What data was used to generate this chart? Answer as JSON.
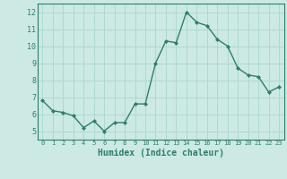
{
  "x": [
    0,
    1,
    2,
    3,
    4,
    5,
    6,
    7,
    8,
    9,
    10,
    11,
    12,
    13,
    14,
    15,
    16,
    17,
    18,
    19,
    20,
    21,
    22,
    23
  ],
  "y": [
    6.8,
    6.2,
    6.1,
    5.9,
    5.2,
    5.6,
    5.0,
    5.5,
    5.5,
    6.6,
    6.6,
    9.0,
    10.3,
    10.2,
    12.0,
    11.4,
    11.2,
    10.4,
    10.0,
    8.7,
    8.3,
    8.2,
    7.3,
    7.6
  ],
  "xlabel": "Humidex (Indice chaleur)",
  "ylim": [
    4.5,
    12.5
  ],
  "xlim": [
    -0.5,
    23.5
  ],
  "yticks": [
    5,
    6,
    7,
    8,
    9,
    10,
    11,
    12
  ],
  "xticks": [
    0,
    1,
    2,
    3,
    4,
    5,
    6,
    7,
    8,
    9,
    10,
    11,
    12,
    13,
    14,
    15,
    16,
    17,
    18,
    19,
    20,
    21,
    22,
    23
  ],
  "line_color": "#2e7d6e",
  "marker": "D",
  "marker_size": 2.0,
  "line_width": 1.0,
  "bg_color": "#cce9e4",
  "grid_color": "#b0d8d2",
  "tick_color": "#2e7d6e",
  "label_color": "#2e7d6e",
  "font_family": "monospace",
  "tick_fontsize_x": 5.0,
  "tick_fontsize_y": 6.0,
  "xlabel_fontsize": 7.0
}
